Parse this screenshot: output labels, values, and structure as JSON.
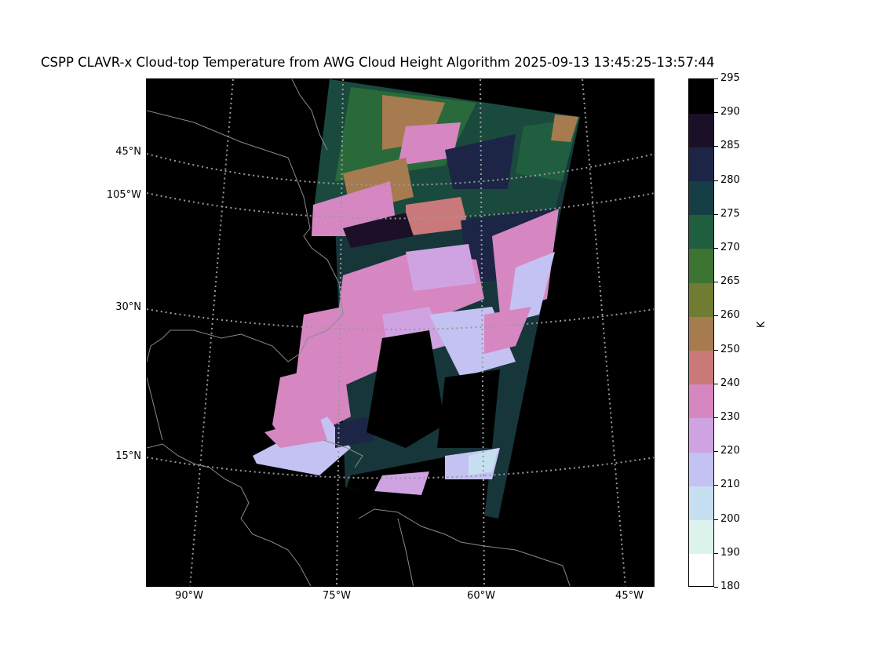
{
  "title": "CSPP CLAVR-x Cloud-top Temperature from AWG Cloud Height Algorithm 2025-09-13 13:45:25-13:57:44",
  "map": {
    "lat_labels": [
      "45°N",
      "105°W",
      "30°N",
      "15°N"
    ],
    "lon_labels": [
      "90°W",
      "75°W",
      "60°W",
      "45°W"
    ],
    "colors": {
      "background": "#000000",
      "coastline": "#8a8a8a",
      "gridline": "#9a9a9a"
    }
  },
  "colorbar": {
    "unit": "K",
    "tick_labels": [
      "295",
      "290",
      "285",
      "280",
      "275",
      "270",
      "265",
      "260",
      "250",
      "240",
      "230",
      "220",
      "210",
      "200",
      "190",
      "180"
    ],
    "levels": [
      180,
      190,
      200,
      210,
      220,
      230,
      240,
      250,
      260,
      265,
      270,
      275,
      280,
      285,
      290,
      295
    ],
    "colors": [
      "#ffffff",
      "#dcf3ec",
      "#c6e0f2",
      "#c4c2f3",
      "#cfa3e2",
      "#d687c2",
      "#c97979",
      "#a57b4f",
      "#6f7c32",
      "#3e7431",
      "#1f5f3f",
      "#163f45",
      "#1d2546",
      "#1b1028",
      "#000000"
    ]
  }
}
